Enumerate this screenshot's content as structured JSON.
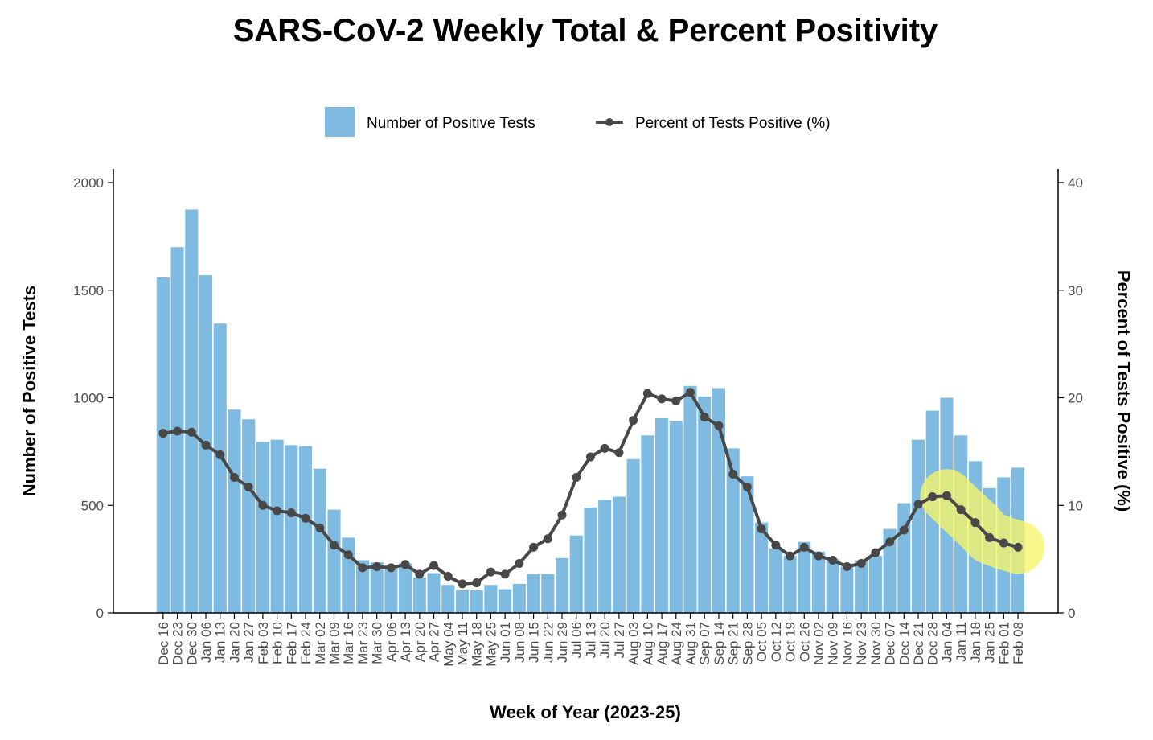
{
  "chart_data": {
    "type": "bar+line",
    "title": "SARS-CoV-2 Weekly Total & Percent Positivity",
    "xlabel": "Week of Year (2023-25)",
    "ylabel": "Number of Positive Tests",
    "y2label": "Percent of Tests Positive (%)",
    "ylim": [
      0,
      2000
    ],
    "y2lim": [
      0,
      40
    ],
    "yticks": [
      "0",
      "500",
      "1000",
      "1500",
      "2000"
    ],
    "y2ticks": [
      "0",
      "10",
      "20",
      "30",
      "40"
    ],
    "legend_position": "top",
    "grid": false,
    "colors": {
      "bars": "#7fbbe0",
      "line": "#484848",
      "highlight": "#f6f56a"
    },
    "categories": [
      "Dec 16",
      "Dec 23",
      "Dec 30",
      "Jan 06",
      "Jan 13",
      "Jan 20",
      "Jan 27",
      "Feb 03",
      "Feb 10",
      "Feb 17",
      "Feb 24",
      "Mar 02",
      "Mar 09",
      "Mar 16",
      "Mar 23",
      "Mar 30",
      "Apr 06",
      "Apr 13",
      "Apr 20",
      "Apr 27",
      "May 04",
      "May 11",
      "May 18",
      "May 25",
      "Jun 01",
      "Jun 08",
      "Jun 15",
      "Jun 22",
      "Jun 29",
      "Jul 06",
      "Jul 13",
      "Jul 20",
      "Jul 27",
      "Aug 03",
      "Aug 10",
      "Aug 17",
      "Aug 24",
      "Aug 31",
      "Sep 07",
      "Sep 14",
      "Sep 21",
      "Sep 28",
      "Oct 05",
      "Oct 12",
      "Oct 19",
      "Oct 26",
      "Nov 02",
      "Nov 09",
      "Nov 16",
      "Nov 23",
      "Nov 30",
      "Dec 07",
      "Dec 14",
      "Dec 21",
      "Dec 28",
      "Jan 04",
      "Jan 11",
      "Jan 18",
      "Jan 25",
      "Feb 01",
      "Feb 08"
    ],
    "series": [
      {
        "name": "Number of Positive Tests",
        "type": "bar",
        "axis": "left",
        "values": [
          1560,
          1700,
          1875,
          1570,
          1345,
          945,
          900,
          795,
          805,
          780,
          775,
          670,
          480,
          350,
          245,
          235,
          220,
          230,
          165,
          185,
          130,
          105,
          105,
          130,
          110,
          135,
          180,
          180,
          255,
          360,
          490,
          525,
          540,
          715,
          825,
          905,
          890,
          1055,
          1005,
          1045,
          765,
          635,
          420,
          300,
          265,
          330,
          285,
          250,
          215,
          245,
          265,
          390,
          510,
          805,
          940,
          1000,
          825,
          705,
          580,
          630,
          675
        ]
      },
      {
        "name": "Percent of Tests Positive (%)",
        "type": "line",
        "axis": "right",
        "values": [
          16.7,
          16.9,
          16.8,
          15.6,
          14.7,
          12.6,
          11.7,
          10.0,
          9.5,
          9.3,
          8.8,
          7.9,
          6.3,
          5.4,
          4.2,
          4.3,
          4.2,
          4.5,
          3.6,
          4.4,
          3.4,
          2.7,
          2.8,
          3.8,
          3.6,
          4.6,
          6.1,
          6.9,
          9.1,
          12.6,
          14.5,
          15.3,
          14.9,
          17.9,
          20.4,
          19.9,
          19.7,
          20.5,
          18.2,
          17.4,
          12.9,
          11.7,
          7.8,
          6.3,
          5.3,
          6.1,
          5.3,
          4.9,
          4.3,
          4.6,
          5.6,
          6.6,
          7.7,
          10.1,
          10.8,
          10.9,
          9.6,
          8.4,
          7.0,
          6.5,
          6.1
        ]
      }
    ],
    "highlight_range": [
      "Jan 04",
      "Feb 08"
    ]
  }
}
